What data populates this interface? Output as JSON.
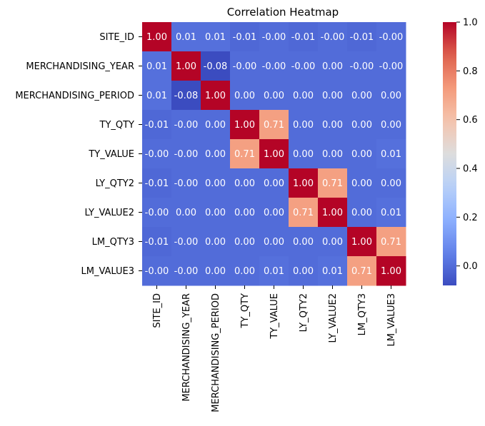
{
  "chart_data": {
    "type": "heatmap",
    "title": "Correlation Heatmap",
    "xlabel": "",
    "ylabel": "",
    "labels": [
      "SITE_ID",
      "MERCHANDISING_YEAR",
      "MERCHANDISING_PERIOD",
      "TY_QTY",
      "TY_VALUE",
      "LY_QTY2",
      "LY_VALUE2",
      "LM_QTY3",
      "LM_VALUE3"
    ],
    "matrix": [
      [
        1.0,
        0.01,
        0.01,
        -0.01,
        -0.0,
        -0.01,
        -0.0,
        -0.01,
        -0.0
      ],
      [
        0.01,
        1.0,
        -0.08,
        -0.0,
        -0.0,
        -0.0,
        0.0,
        -0.0,
        -0.0
      ],
      [
        0.01,
        -0.08,
        1.0,
        0.0,
        0.0,
        0.0,
        0.0,
        0.0,
        0.0
      ],
      [
        -0.01,
        -0.0,
        0.0,
        1.0,
        0.71,
        0.0,
        0.0,
        0.0,
        0.0
      ],
      [
        -0.0,
        -0.0,
        0.0,
        0.71,
        1.0,
        0.0,
        0.0,
        0.0,
        0.01
      ],
      [
        -0.01,
        -0.0,
        0.0,
        0.0,
        0.0,
        1.0,
        0.71,
        0.0,
        0.0
      ],
      [
        -0.0,
        0.0,
        0.0,
        0.0,
        0.0,
        0.71,
        1.0,
        0.0,
        0.01
      ],
      [
        -0.01,
        -0.0,
        0.0,
        0.0,
        0.0,
        0.0,
        0.0,
        1.0,
        0.71
      ],
      [
        -0.0,
        -0.0,
        0.0,
        0.0,
        0.01,
        0.0,
        0.01,
        0.71,
        1.0
      ]
    ],
    "cell_labels": [
      [
        "1.00",
        "0.01",
        "0.01",
        "-0.01",
        "-0.00",
        "-0.01",
        "-0.00",
        "-0.01",
        "-0.00"
      ],
      [
        "0.01",
        "1.00",
        "-0.08",
        "-0.00",
        "-0.00",
        "-0.00",
        "0.00",
        "-0.00",
        "-0.00"
      ],
      [
        "0.01",
        "-0.08",
        "1.00",
        "0.00",
        "0.00",
        "0.00",
        "0.00",
        "0.00",
        "0.00"
      ],
      [
        "-0.01",
        "-0.00",
        "0.00",
        "1.00",
        "0.71",
        "0.00",
        "0.00",
        "0.00",
        "0.00"
      ],
      [
        "-0.00",
        "-0.00",
        "0.00",
        "0.71",
        "1.00",
        "0.00",
        "0.00",
        "0.00",
        "0.01"
      ],
      [
        "-0.01",
        "-0.00",
        "0.00",
        "0.00",
        "0.00",
        "1.00",
        "0.71",
        "0.00",
        "0.00"
      ],
      [
        "-0.00",
        "0.00",
        "0.00",
        "0.00",
        "0.00",
        "0.71",
        "1.00",
        "0.00",
        "0.01"
      ],
      [
        "-0.01",
        "-0.00",
        "0.00",
        "0.00",
        "0.00",
        "0.00",
        "0.00",
        "1.00",
        "0.71"
      ],
      [
        "-0.00",
        "-0.00",
        "0.00",
        "0.00",
        "0.01",
        "0.00",
        "0.01",
        "0.71",
        "1.00"
      ]
    ],
    "colormap": "coolwarm",
    "colorbar": {
      "vmin": -0.08,
      "vmax": 1.0,
      "ticks": [
        0.0,
        0.2,
        0.4,
        0.6,
        0.8,
        1.0
      ],
      "tick_labels": [
        "0.0",
        "0.2",
        "0.4",
        "0.6",
        "0.8",
        "1.0"
      ]
    },
    "grid": false,
    "legend": "none"
  }
}
